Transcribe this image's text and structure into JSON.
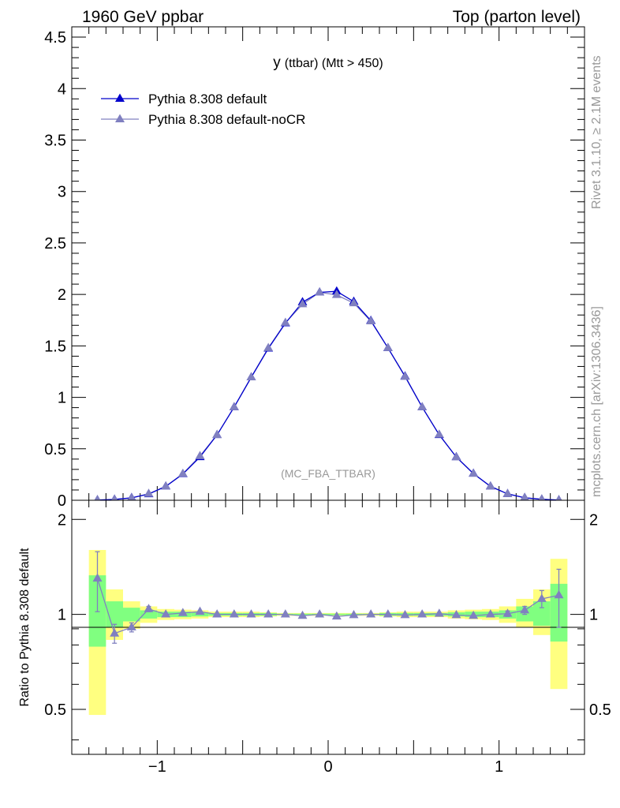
{
  "header": {
    "left": "1960 GeV ppbar",
    "right": "Top (parton level)"
  },
  "side": {
    "rivet": "Rivet 3.1.10, ≥ 2.1M events",
    "source": "mcplots.cern.ch [arXiv:1306.3436]"
  },
  "chart_data": [
    {
      "type": "line",
      "title": "y (ttbar) (Mtt > 450)",
      "title_main": "y",
      "title_sub": "(ttbar) (Mtt > 450)",
      "watermark": "(MC_FBA_TTBAR)",
      "xlim": [
        -1.5,
        1.5
      ],
      "ylim": [
        0,
        4.6
      ],
      "yticks": [
        0,
        0.5,
        1,
        1.5,
        2,
        2.5,
        3,
        3.5,
        4,
        4.5
      ],
      "ytick_labels": [
        "0",
        "0.5",
        "1",
        "1.5",
        "2",
        "2.5",
        "3",
        "3.5",
        "4",
        "4.5"
      ],
      "x": [
        -1.35,
        -1.25,
        -1.15,
        -1.05,
        -0.95,
        -0.85,
        -0.75,
        -0.65,
        -0.55,
        -0.45,
        -0.35,
        -0.25,
        -0.15,
        -0.05,
        0.05,
        0.15,
        0.25,
        0.35,
        0.45,
        0.55,
        0.65,
        0.75,
        0.85,
        0.95,
        1.05,
        1.15,
        1.25,
        1.35
      ],
      "series": [
        {
          "name": "Pythia 8.308 default",
          "color": "#0000cc",
          "values": [
            0.002,
            0.008,
            0.024,
            0.06,
            0.135,
            0.255,
            0.42,
            0.635,
            0.905,
            1.195,
            1.475,
            1.72,
            1.925,
            2.02,
            2.03,
            1.93,
            1.745,
            1.48,
            1.205,
            0.905,
            0.635,
            0.42,
            0.26,
            0.135,
            0.062,
            0.024,
            0.009,
            0.002
          ]
        },
        {
          "name": "Pythia 8.308 default-noCR",
          "color": "#8080c0",
          "values": [
            0.003,
            0.007,
            0.022,
            0.063,
            0.135,
            0.258,
            0.43,
            0.635,
            0.905,
            1.195,
            1.48,
            1.725,
            1.905,
            2.02,
            1.995,
            1.915,
            1.74,
            1.48,
            1.2,
            0.905,
            0.638,
            0.418,
            0.258,
            0.135,
            0.062,
            0.025,
            0.01,
            0.002
          ]
        }
      ]
    },
    {
      "type": "line",
      "ylabel": "Ratio to Pythia 8.308 default",
      "xlim": [
        -1.5,
        1.5
      ],
      "ylim": [
        0.36,
        2.3
      ],
      "yticks": [
        0.5,
        1,
        2
      ],
      "ytick_labels": [
        "0.5",
        "1",
        "2"
      ],
      "xticks": [
        -1,
        0,
        1
      ],
      "xtick_labels": [
        "−1",
        "0",
        "1"
      ],
      "x": [
        -1.35,
        -1.25,
        -1.15,
        -1.05,
        -0.95,
        -0.85,
        -0.75,
        -0.65,
        -0.55,
        -0.45,
        -0.35,
        -0.25,
        -0.15,
        -0.05,
        0.05,
        0.15,
        0.25,
        0.35,
        0.45,
        0.55,
        0.65,
        0.75,
        0.85,
        0.95,
        1.05,
        1.15,
        1.25,
        1.35
      ],
      "band_1sigma": [
        [
          0.79,
          1.33
        ],
        [
          0.91,
          1.1
        ],
        [
          0.95,
          1.05
        ],
        [
          0.97,
          1.03
        ],
        [
          0.98,
          1.02
        ],
        [
          0.98,
          1.02
        ],
        [
          0.985,
          1.015
        ],
        [
          0.99,
          1.01
        ],
        [
          0.99,
          1.01
        ],
        [
          0.99,
          1.01
        ],
        [
          0.99,
          1.01
        ],
        [
          0.995,
          1.005
        ],
        [
          0.995,
          1.005
        ],
        [
          0.995,
          1.005
        ],
        [
          0.995,
          1.005
        ],
        [
          0.995,
          1.005
        ],
        [
          0.995,
          1.005
        ],
        [
          0.99,
          1.01
        ],
        [
          0.99,
          1.01
        ],
        [
          0.99,
          1.01
        ],
        [
          0.99,
          1.01
        ],
        [
          0.985,
          1.015
        ],
        [
          0.98,
          1.02
        ],
        [
          0.98,
          1.02
        ],
        [
          0.97,
          1.03
        ],
        [
          0.95,
          1.06
        ],
        [
          0.92,
          1.1
        ],
        [
          0.82,
          1.25
        ]
      ],
      "band_2sigma": [
        [
          0.48,
          1.6
        ],
        [
          0.83,
          1.2
        ],
        [
          0.9,
          1.1
        ],
        [
          0.94,
          1.06
        ],
        [
          0.96,
          1.04
        ],
        [
          0.965,
          1.035
        ],
        [
          0.97,
          1.03
        ],
        [
          0.98,
          1.02
        ],
        [
          0.98,
          1.02
        ],
        [
          0.98,
          1.02
        ],
        [
          0.985,
          1.015
        ],
        [
          0.99,
          1.01
        ],
        [
          0.99,
          1.01
        ],
        [
          0.99,
          1.01
        ],
        [
          0.99,
          1.01
        ],
        [
          0.99,
          1.01
        ],
        [
          0.99,
          1.01
        ],
        [
          0.985,
          1.015
        ],
        [
          0.98,
          1.02
        ],
        [
          0.98,
          1.02
        ],
        [
          0.98,
          1.02
        ],
        [
          0.97,
          1.03
        ],
        [
          0.965,
          1.035
        ],
        [
          0.96,
          1.04
        ],
        [
          0.94,
          1.06
        ],
        [
          0.91,
          1.12
        ],
        [
          0.86,
          1.2
        ],
        [
          0.58,
          1.5
        ]
      ],
      "series": [
        {
          "name": "Pythia 8.308 default-noCR",
          "color": "#8080c0",
          "values": [
            1.3,
            0.87,
            0.91,
            1.04,
            1.0,
            1.01,
            1.02,
            1.0,
            1.0,
            1.0,
            1.0,
            1.0,
            0.99,
            1.0,
            0.985,
            0.995,
            1.0,
            1.0,
            0.995,
            1.0,
            1.005,
            0.995,
            0.99,
            1.0,
            1.005,
            1.03,
            1.12,
            1.15
          ],
          "err": [
            0.28,
            0.06,
            0.03,
            0.02,
            0.015,
            0.01,
            0.01,
            0.008,
            0.006,
            0.005,
            0.005,
            0.004,
            0.004,
            0.004,
            0.004,
            0.004,
            0.004,
            0.005,
            0.005,
            0.006,
            0.008,
            0.01,
            0.01,
            0.015,
            0.02,
            0.03,
            0.07,
            0.24
          ]
        }
      ]
    }
  ]
}
